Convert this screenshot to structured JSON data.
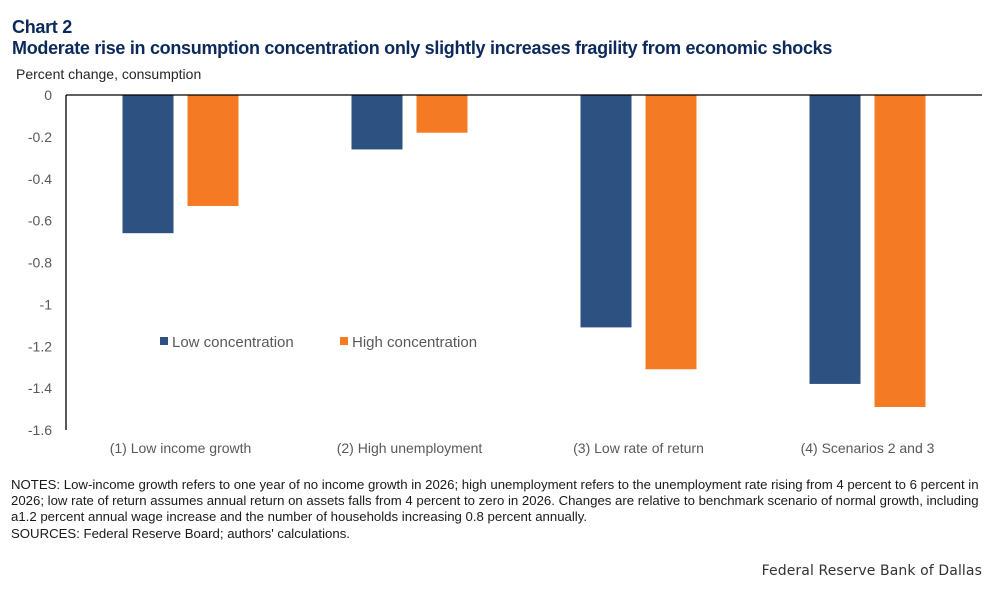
{
  "header": {
    "chart_label": "Chart 2",
    "title": "Moderate rise in consumption concentration only slightly increases fragility from economic shocks"
  },
  "colors": {
    "low": "#2d5281",
    "high": "#f47a23",
    "title": "#0b2a5b",
    "axis": "#000000"
  },
  "chart_data": {
    "type": "bar",
    "title": "Moderate rise in consumption concentration only slightly increases fragility from economic shocks",
    "ylabel": "Percent change, consumption",
    "xlabel": "",
    "categories": [
      "(1) Low income growth",
      "(2) High unemployment",
      "(3) Low rate of return",
      "(4) Scenarios 2 and 3"
    ],
    "series": [
      {
        "name": "Low concentration",
        "color": "#2d5281",
        "values": [
          -0.66,
          -0.26,
          -1.11,
          -1.38
        ]
      },
      {
        "name": "High concentration",
        "color": "#f47a23",
        "values": [
          -0.53,
          -0.18,
          -1.31,
          -1.49
        ]
      }
    ],
    "ylim": [
      -1.6,
      0
    ],
    "yticks": [
      0,
      -0.2,
      -0.4,
      -0.6,
      -0.8,
      -1,
      -1.2,
      -1.4,
      -1.6
    ],
    "ytick_labels": [
      "0",
      "-0.2",
      "-0.4",
      "-0.6",
      "-0.8",
      "-1",
      "-1.2",
      "-1.4",
      "-1.6"
    ],
    "grid": false,
    "legend_position": "center-left"
  },
  "notes": {
    "notes_text": "NOTES: Low-income growth refers to one year of no income growth in 2026; high unemployment refers to the unemployment rate rising from 4 percent to 6 percent in 2026; low rate of return assumes annual return on assets falls from 4 percent to zero in 2026. Changes are relative to benchmark scenario of normal growth, including a1.2 percent annual wage increase and the number of households increasing 0.8 percent annually.",
    "sources_text": "SOURCES: Federal Reserve Board; authors' calculations."
  },
  "footer": {
    "credit": "Federal Reserve Bank of Dallas"
  }
}
